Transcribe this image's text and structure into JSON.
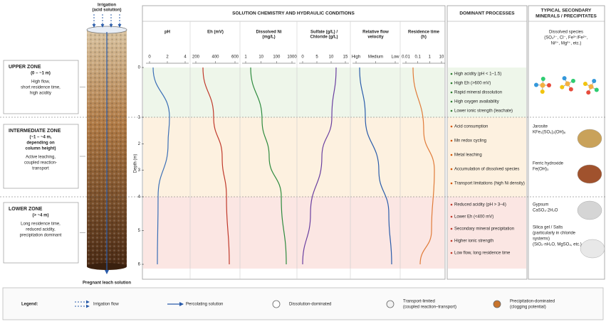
{
  "top_label": [
    "Irrigation",
    "(acid solution)"
  ],
  "bottom_label": "Pregnant leach solution",
  "zones": [
    {
      "title": "UPPER ZONE",
      "range": "(0 – ~1 m)",
      "desc": [
        "High flow,",
        "short residence time,",
        "high acidity"
      ]
    },
    {
      "title": "INTERMEDIATE ZONE",
      "range": "(~1 – ~4 m,",
      "range2": "depending on",
      "range3": "column height)",
      "desc": [
        "Active leaching,",
        "coupled reaction-",
        "transport"
      ]
    },
    {
      "title": "LOWER ZONE",
      "range": "(> ~4 m)",
      "desc": [
        "Long residence time,",
        "reduced acidity,",
        "precipitation dominant"
      ]
    }
  ],
  "chemistry": {
    "title": "SOLUTION CHEMISTRY AND HYDRAULIC CONDITIONS",
    "depth_label": "Depth (m)",
    "depth_ticks": [
      0,
      1,
      2,
      3,
      4,
      5,
      6
    ],
    "panels": [
      {
        "title": [
          "pH"
        ],
        "ticks": [
          "0",
          "2",
          "4"
        ],
        "color": "#3b6fb6"
      },
      {
        "title": [
          "Eh (mV)"
        ],
        "ticks": [
          "200",
          "400",
          "600"
        ],
        "color": "#c0392b"
      },
      {
        "title": [
          "Dissolved Ni",
          "(mg/L)"
        ],
        "ticks": [
          "1",
          "10",
          "100",
          "1000"
        ],
        "color": "#2e8b3e"
      },
      {
        "title": [
          "Sulfate (g/L) /",
          "Chloride (g/L)"
        ],
        "ticks": [
          "0",
          "5",
          "10",
          "15"
        ],
        "color": "#6a3fa0"
      },
      {
        "title": [
          "Relative flow",
          "velocity"
        ],
        "ticks": [
          "High",
          "Medium",
          "Low"
        ],
        "color": "#2a5caa"
      },
      {
        "title": [
          "Residence time",
          "(h)"
        ],
        "ticks": [
          "0.01",
          "0.1",
          "1",
          "10"
        ],
        "color": "#e07b39"
      }
    ]
  },
  "processes": {
    "title": "DOMINANT PROCESSES",
    "groups": [
      [
        "High acidity (pH < 1–1.5)",
        "High Eh (>600 mV)",
        "Rapid mineral dissolution",
        "High oxygen availability",
        "Lower ionic strength (leachate)"
      ],
      [
        "Acid consumption",
        "Mn redox cycling",
        "Metal leaching",
        "Accumulation of dissolved species",
        "Transport limitations (high Ni density)"
      ],
      [
        "Reduced acidity (pH > 3–4)",
        "Lower Eh (<400 mV)",
        "Secondary mineral precipitation",
        "Higher ionic strength",
        "Low flow, long residence time"
      ]
    ]
  },
  "minerals": {
    "title": [
      "TYPICAL SECONDARY",
      "MINERALS / PRECIPITATES"
    ],
    "items": [
      [
        "Dissolved species",
        "(SO₄²⁻, Cl⁻, Fe³⁺/Fe²⁺,",
        "Ni²⁺, Mg²⁺, etc.)"
      ],
      [
        "Jarosite",
        "KFe₃(SO₄)₂(OH)₆"
      ],
      [
        "Ferric hydroxide",
        "Fe(OH)₃"
      ],
      [
        "Gypsum",
        "CaSO₄·2H₂O"
      ],
      [
        "Silica gel / Salts",
        "(particularly in chloride",
        "systems)",
        "(SiO₂·nH₂O, MgSO₄, etc.)"
      ]
    ]
  },
  "legend": {
    "title": "Legend:",
    "items": [
      "Irrigation flow",
      "Percolating solution",
      "Dissolution-dominated",
      [
        "Transport-limited",
        "(coupled reaction–transport)"
      ],
      [
        "Precipitation-dominated",
        "(clogging potential)"
      ]
    ]
  }
}
